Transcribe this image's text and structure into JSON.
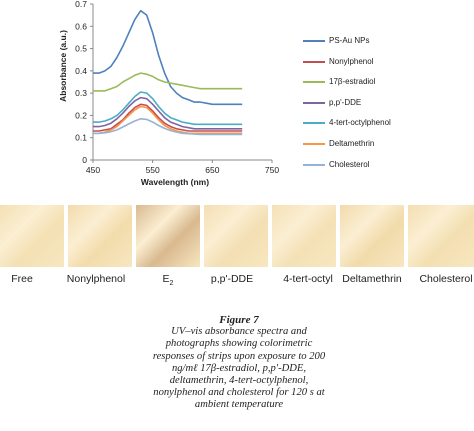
{
  "chart_data": {
    "type": "line",
    "xlabel": "Wavelength (nm)",
    "ylabel": "Absorbance (a.u.)",
    "xlim": [
      450,
      750
    ],
    "ylim": [
      0,
      0.7
    ],
    "xticks": [
      "450",
      "550",
      "650",
      "750"
    ],
    "yticks": [
      "0",
      "0.1",
      "0.2",
      "0.3",
      "0.4",
      "0.5",
      "0.6",
      "0.7"
    ],
    "grid": false,
    "legend_position": "right",
    "x": [
      450,
      460,
      470,
      480,
      490,
      500,
      510,
      520,
      530,
      540,
      550,
      560,
      570,
      580,
      590,
      600,
      610,
      620,
      630,
      640,
      650,
      660,
      670,
      680,
      690,
      700
    ],
    "series": [
      {
        "name": "PS-Au NPs",
        "color": "#4f81bd",
        "values": [
          0.39,
          0.39,
          0.4,
          0.42,
          0.46,
          0.51,
          0.57,
          0.63,
          0.67,
          0.65,
          0.57,
          0.47,
          0.39,
          0.33,
          0.3,
          0.28,
          0.27,
          0.26,
          0.26,
          0.255,
          0.25,
          0.25,
          0.25,
          0.25,
          0.25,
          0.25
        ]
      },
      {
        "name": "Nonylphenol",
        "color": "#c0504d",
        "values": [
          0.13,
          0.13,
          0.135,
          0.14,
          0.16,
          0.18,
          0.21,
          0.235,
          0.25,
          0.245,
          0.22,
          0.19,
          0.165,
          0.15,
          0.14,
          0.135,
          0.13,
          0.13,
          0.13,
          0.13,
          0.13,
          0.13,
          0.13,
          0.13,
          0.13,
          0.13
        ]
      },
      {
        "name": "17β-estradiol",
        "color": "#9bbb59",
        "values": [
          0.31,
          0.31,
          0.31,
          0.32,
          0.33,
          0.35,
          0.365,
          0.38,
          0.39,
          0.385,
          0.375,
          0.36,
          0.35,
          0.345,
          0.34,
          0.335,
          0.33,
          0.325,
          0.32,
          0.32,
          0.32,
          0.32,
          0.32,
          0.32,
          0.32,
          0.32
        ]
      },
      {
        "name": "p,p'-DDE",
        "color": "#8064a2",
        "values": [
          0.15,
          0.15,
          0.155,
          0.165,
          0.185,
          0.21,
          0.24,
          0.265,
          0.28,
          0.275,
          0.25,
          0.22,
          0.19,
          0.17,
          0.16,
          0.15,
          0.145,
          0.14,
          0.14,
          0.14,
          0.14,
          0.14,
          0.14,
          0.14,
          0.14,
          0.14
        ]
      },
      {
        "name": "4-tert-octylphenol",
        "color": "#4bacc6",
        "values": [
          0.17,
          0.17,
          0.175,
          0.185,
          0.2,
          0.225,
          0.255,
          0.285,
          0.305,
          0.3,
          0.275,
          0.24,
          0.21,
          0.19,
          0.18,
          0.17,
          0.165,
          0.16,
          0.16,
          0.16,
          0.16,
          0.16,
          0.16,
          0.16,
          0.16,
          0.16
        ]
      },
      {
        "name": "Deltamethrin",
        "color": "#f79646",
        "values": [
          0.12,
          0.12,
          0.125,
          0.135,
          0.15,
          0.175,
          0.2,
          0.225,
          0.24,
          0.235,
          0.21,
          0.18,
          0.155,
          0.14,
          0.13,
          0.125,
          0.12,
          0.12,
          0.12,
          0.12,
          0.12,
          0.12,
          0.12,
          0.12,
          0.12,
          0.12
        ]
      },
      {
        "name": "Cholesterol",
        "color": "#95b3d7",
        "values": [
          0.12,
          0.12,
          0.122,
          0.127,
          0.135,
          0.148,
          0.162,
          0.175,
          0.185,
          0.182,
          0.17,
          0.155,
          0.142,
          0.132,
          0.125,
          0.12,
          0.118,
          0.116,
          0.115,
          0.115,
          0.115,
          0.115,
          0.115,
          0.115,
          0.115,
          0.115
        ]
      }
    ]
  },
  "strips": [
    {
      "label": "Free",
      "color": "#f3e1b4"
    },
    {
      "label": "Nonylphenol",
      "color": "#f2dcab"
    },
    {
      "label": "E",
      "label_sub": "2",
      "color": "#d9b98f"
    },
    {
      "label": "p,p'-DDE",
      "color": "#f3dfb3"
    },
    {
      "label": "4-tert-octyl",
      "color": "#f4e1b6"
    },
    {
      "label": "Deltamethrin",
      "color": "#f1dbab"
    },
    {
      "label": "Cholesterol",
      "color": "#f3dfb1"
    }
  ],
  "caption": {
    "title": "Figure 7",
    "text": "UV–vis absorbance spectra and photographs showing colorimetric responses of strips upon exposure to 200 ng/mℓ 17β-estradiol, p,p'-DDE, deltamethrin, 4-tert-octylphenol, nonylphenol and cholesterol for 120 s at ambient temperature"
  }
}
